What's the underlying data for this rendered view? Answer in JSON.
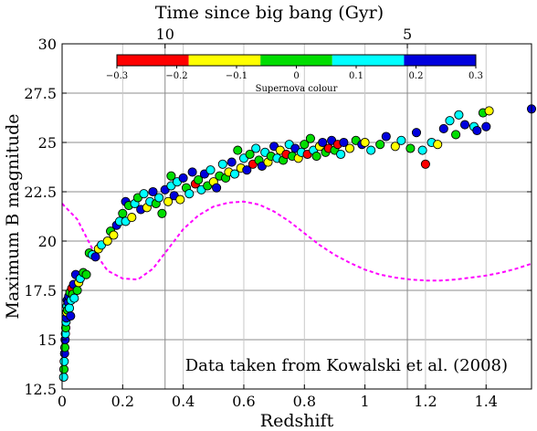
{
  "chart_data": {
    "type": "scatter",
    "xlabel": "Redshift",
    "ylabel": "Maximum B magnitude",
    "top_axis_label": "Time since big bang (Gyr)",
    "top_ticks": [
      {
        "label": "10",
        "z": 0.34
      },
      {
        "label": "5",
        "z": 1.14
      }
    ],
    "xlim": [
      0,
      1.55
    ],
    "ylim": [
      12.5,
      30
    ],
    "xticks": [
      0,
      0.2,
      0.4,
      0.6,
      0.8,
      1,
      1.2,
      1.4
    ],
    "xtick_labels": [
      "0",
      "0.2",
      "0.4",
      "0.6",
      "0.8",
      "1",
      "1.2",
      "1.4"
    ],
    "yticks": [
      12.5,
      15,
      17.5,
      20,
      22.5,
      25,
      27.5,
      30
    ],
    "ytick_labels": [
      "12.5",
      "15",
      "17.5",
      "20",
      "22.5",
      "25",
      "27.5",
      "30"
    ],
    "grid": true,
    "annotation": "Data taken from Kowalski et al. (2008)",
    "colorbar": {
      "label": "Supernova colour",
      "range": [
        -0.3,
        0.3
      ],
      "tick_values": [
        -0.3,
        -0.2,
        -0.1,
        0,
        0.1,
        0.2,
        0.3
      ],
      "tick_labels": [
        "−0.3",
        "−0.2",
        "−0.1",
        "0",
        "0.1",
        "0.2",
        "0.3"
      ],
      "segments": [
        {
          "from": -0.3,
          "to": -0.18,
          "color": "#ff0000"
        },
        {
          "from": -0.18,
          "to": -0.06,
          "color": "#ffff00"
        },
        {
          "from": -0.06,
          "to": 0.06,
          "color": "#00dd00"
        },
        {
          "from": 0.06,
          "to": 0.18,
          "color": "#00ffff"
        },
        {
          "from": 0.18,
          "to": 0.3,
          "color": "#0000dd"
        }
      ]
    },
    "curve": {
      "color": "#ff00ff",
      "style": "dashed",
      "points": [
        [
          0,
          21.9
        ],
        [
          0.05,
          21.1
        ],
        [
          0.1,
          19.6
        ],
        [
          0.15,
          18.5
        ],
        [
          0.2,
          18.1
        ],
        [
          0.25,
          18.05
        ],
        [
          0.3,
          18.6
        ],
        [
          0.35,
          19.6
        ],
        [
          0.4,
          20.6
        ],
        [
          0.45,
          21.3
        ],
        [
          0.5,
          21.75
        ],
        [
          0.55,
          21.95
        ],
        [
          0.6,
          22.0
        ],
        [
          0.65,
          21.85
        ],
        [
          0.7,
          21.5
        ],
        [
          0.75,
          21.0
        ],
        [
          0.8,
          20.4
        ],
        [
          0.85,
          19.8
        ],
        [
          0.9,
          19.3
        ],
        [
          0.95,
          18.9
        ],
        [
          1.0,
          18.55
        ],
        [
          1.05,
          18.3
        ],
        [
          1.1,
          18.15
        ],
        [
          1.15,
          18.05
        ],
        [
          1.2,
          18.0
        ],
        [
          1.25,
          18.0
        ],
        [
          1.3,
          18.05
        ],
        [
          1.35,
          18.15
        ],
        [
          1.4,
          18.25
        ],
        [
          1.45,
          18.4
        ],
        [
          1.5,
          18.6
        ],
        [
          1.55,
          18.85
        ]
      ]
    },
    "series": [
      {
        "points": [
          [
            0.005,
            13.1,
            0.1
          ],
          [
            0.006,
            13.5,
            0.0
          ],
          [
            0.007,
            13.9,
            0.1
          ],
          [
            0.008,
            14.3,
            0.2
          ],
          [
            0.009,
            14.6,
            0.0
          ],
          [
            0.01,
            15.0,
            0.2
          ],
          [
            0.011,
            15.3,
            0.1
          ],
          [
            0.012,
            15.6,
            0.0
          ],
          [
            0.013,
            15.9,
            0.1
          ],
          [
            0.014,
            16.1,
            0.2
          ],
          [
            0.015,
            16.4,
            -0.1
          ],
          [
            0.016,
            16.7,
            0.1
          ],
          [
            0.017,
            17.0,
            0.2
          ],
          [
            0.018,
            16.5,
            0.0
          ],
          [
            0.02,
            16.9,
            0.2
          ],
          [
            0.022,
            17.2,
            0.2
          ],
          [
            0.024,
            16.6,
            0.1
          ],
          [
            0.026,
            17.4,
            0.0
          ],
          [
            0.028,
            16.2,
            0.2
          ],
          [
            0.03,
            17.0,
            0.1
          ],
          [
            0.032,
            17.6,
            -0.2
          ],
          [
            0.035,
            17.3,
            0.0
          ],
          [
            0.038,
            17.8,
            0.2
          ],
          [
            0.04,
            17.1,
            0.1
          ],
          [
            0.045,
            18.3,
            0.2
          ],
          [
            0.05,
            17.5,
            0.0
          ],
          [
            0.055,
            17.9,
            -0.1
          ],
          [
            0.06,
            18.1,
            0.1
          ],
          [
            0.07,
            18.4,
            0.0
          ],
          [
            0.08,
            18.3,
            0.0
          ],
          [
            0.09,
            19.4,
            0.0
          ],
          [
            0.1,
            19.3,
            0.1
          ],
          [
            0.11,
            19.2,
            0.2
          ],
          [
            0.12,
            19.6,
            -0.1
          ],
          [
            0.13,
            19.8,
            0.1
          ],
          [
            0.15,
            20.0,
            -0.1
          ],
          [
            0.16,
            20.5,
            0.0
          ],
          [
            0.17,
            20.3,
            -0.1
          ],
          [
            0.18,
            20.8,
            0.2
          ],
          [
            0.19,
            21.0,
            0.1
          ],
          [
            0.2,
            21.4,
            0.0
          ],
          [
            0.21,
            21.0,
            0.1
          ],
          [
            0.21,
            22.0,
            0.2
          ],
          [
            0.22,
            21.8,
            0.0
          ],
          [
            0.23,
            21.2,
            -0.1
          ],
          [
            0.24,
            21.9,
            0.1
          ],
          [
            0.25,
            22.2,
            0.0
          ],
          [
            0.26,
            21.6,
            0.2
          ],
          [
            0.27,
            22.4,
            0.1
          ],
          [
            0.28,
            21.7,
            -0.1
          ],
          [
            0.29,
            22.0,
            0.1
          ],
          [
            0.3,
            22.5,
            0.2
          ],
          [
            0.31,
            21.9,
            0.0
          ],
          [
            0.32,
            22.2,
            0.1
          ],
          [
            0.33,
            21.4,
            0.0
          ],
          [
            0.34,
            22.6,
            0.2
          ],
          [
            0.35,
            22.0,
            -0.1
          ],
          [
            0.36,
            23.3,
            0.0
          ],
          [
            0.36,
            22.8,
            0.1
          ],
          [
            0.37,
            22.3,
            0.2
          ],
          [
            0.38,
            23.0,
            0.1
          ],
          [
            0.39,
            22.1,
            -0.1
          ],
          [
            0.4,
            23.2,
            0.2
          ],
          [
            0.41,
            22.7,
            0.0
          ],
          [
            0.42,
            22.4,
            0.1
          ],
          [
            0.43,
            23.5,
            0.2
          ],
          [
            0.44,
            22.9,
            -0.2
          ],
          [
            0.45,
            23.1,
            0.0
          ],
          [
            0.46,
            22.6,
            0.1
          ],
          [
            0.47,
            23.4,
            0.2
          ],
          [
            0.48,
            22.8,
            0.0
          ],
          [
            0.49,
            23.6,
            0.1
          ],
          [
            0.5,
            23.0,
            -0.1
          ],
          [
            0.51,
            22.7,
            0.2
          ],
          [
            0.52,
            23.3,
            0.0
          ],
          [
            0.53,
            23.9,
            0.1
          ],
          [
            0.54,
            23.2,
            0.0
          ],
          [
            0.55,
            23.5,
            -0.1
          ],
          [
            0.56,
            24.0,
            0.2
          ],
          [
            0.57,
            23.4,
            0.1
          ],
          [
            0.58,
            24.6,
            0.0
          ],
          [
            0.59,
            23.7,
            -0.1
          ],
          [
            0.6,
            24.2,
            0.1
          ],
          [
            0.61,
            23.6,
            0.2
          ],
          [
            0.62,
            24.4,
            0.0
          ],
          [
            0.63,
            23.9,
            -0.2
          ],
          [
            0.64,
            24.7,
            0.1
          ],
          [
            0.65,
            24.1,
            0.0
          ],
          [
            0.66,
            23.8,
            0.2
          ],
          [
            0.67,
            24.5,
            0.1
          ],
          [
            0.68,
            24.0,
            -0.1
          ],
          [
            0.69,
            24.3,
            0.0
          ],
          [
            0.7,
            24.8,
            0.2
          ],
          [
            0.71,
            24.2,
            0.1
          ],
          [
            0.72,
            24.6,
            -0.1
          ],
          [
            0.73,
            24.1,
            0.0
          ],
          [
            0.74,
            24.4,
            -0.2
          ],
          [
            0.75,
            24.9,
            0.1
          ],
          [
            0.76,
            24.3,
            0.0
          ],
          [
            0.77,
            24.7,
            0.2
          ],
          [
            0.78,
            24.2,
            -0.1
          ],
          [
            0.79,
            24.5,
            0.1
          ],
          [
            0.8,
            24.9,
            0.0
          ],
          [
            0.81,
            24.4,
            -0.2
          ],
          [
            0.82,
            25.2,
            0.0
          ],
          [
            0.83,
            24.6,
            0.1
          ],
          [
            0.84,
            24.3,
            0.0
          ],
          [
            0.85,
            24.8,
            -0.1
          ],
          [
            0.86,
            25.0,
            0.2
          ],
          [
            0.87,
            24.5,
            0.0
          ],
          [
            0.88,
            24.7,
            -0.3
          ],
          [
            0.89,
            25.1,
            0.2
          ],
          [
            0.9,
            24.6,
            0.0
          ],
          [
            0.91,
            24.9,
            -0.3
          ],
          [
            0.92,
            24.4,
            0.1
          ],
          [
            0.93,
            25.0,
            0.2
          ],
          [
            0.95,
            24.7,
            -0.1
          ],
          [
            0.97,
            25.1,
            0.0
          ],
          [
            0.99,
            24.9,
            0.2
          ],
          [
            1.0,
            25.0,
            -0.1
          ],
          [
            1.02,
            24.6,
            0.1
          ],
          [
            1.05,
            24.9,
            0.0
          ],
          [
            1.07,
            25.3,
            0.2
          ],
          [
            1.1,
            24.8,
            -0.1
          ],
          [
            1.12,
            25.1,
            0.1
          ],
          [
            1.15,
            24.7,
            0.0
          ],
          [
            1.17,
            25.5,
            0.2
          ],
          [
            1.19,
            24.6,
            0.1
          ],
          [
            1.2,
            23.9,
            -0.3
          ],
          [
            1.22,
            25.0,
            0.1
          ],
          [
            1.24,
            24.9,
            -0.1
          ],
          [
            1.26,
            25.7,
            0.2
          ],
          [
            1.28,
            26.1,
            0.1
          ],
          [
            1.3,
            25.4,
            0.0
          ],
          [
            1.31,
            26.4,
            0.1
          ],
          [
            1.33,
            25.9,
            0.2
          ],
          [
            1.36,
            25.8,
            0.1
          ],
          [
            1.37,
            25.6,
            0.2
          ],
          [
            1.39,
            26.5,
            0.0
          ],
          [
            1.4,
            25.8,
            0.2
          ],
          [
            1.41,
            26.6,
            -0.1
          ],
          [
            1.55,
            26.7,
            0.2
          ]
        ]
      }
    ]
  }
}
